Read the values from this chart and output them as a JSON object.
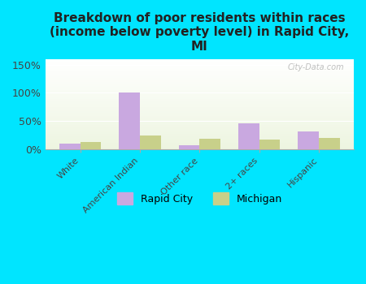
{
  "title": "Breakdown of poor residents within races\n(income below poverty level) in Rapid City,\nMI",
  "categories": [
    "White",
    "American Indian",
    "Other race",
    "2+ races",
    "Hispanic"
  ],
  "rapid_city": [
    10,
    100,
    6,
    46,
    31
  ],
  "michigan": [
    13,
    24,
    18,
    17,
    20
  ],
  "rapid_city_color": "#c9a8e0",
  "michigan_color": "#c8d08a",
  "bg_outer": "#00e5ff",
  "ylim": [
    0,
    160
  ],
  "yticks": [
    0,
    50,
    100,
    150
  ],
  "ytick_labels": [
    "0%",
    "50%",
    "100%",
    "150%"
  ],
  "bar_width": 0.35,
  "title_fontsize": 11,
  "watermark": "City-Data.com",
  "legend_rapid": "Rapid City",
  "legend_michigan": "Michigan"
}
